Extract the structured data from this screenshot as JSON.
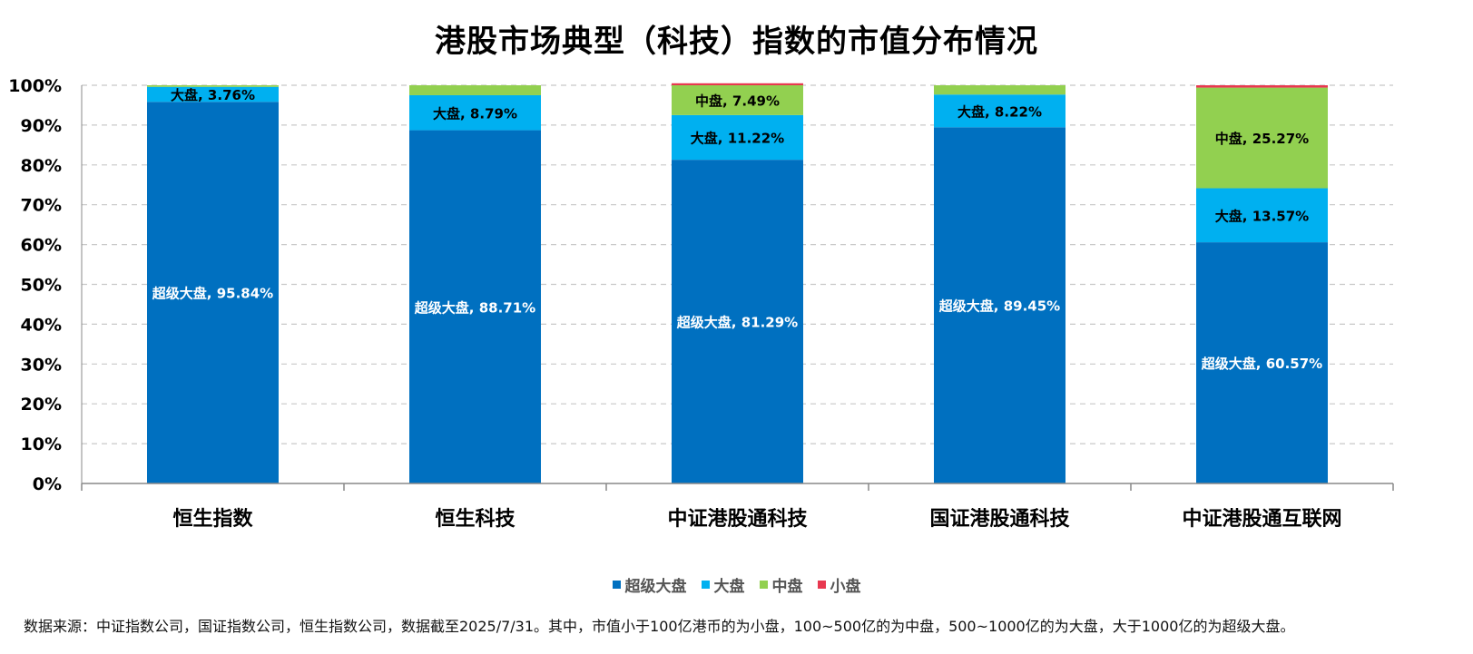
{
  "title": "港股市场典型（科技）指数的市值分布情况",
  "chart_data": {
    "type": "bar",
    "stacked": true,
    "categories": [
      "恒生指数",
      "恒生科技",
      "中证港股通科技",
      "国证港股通科技",
      "中证港股通互联网"
    ],
    "series": [
      {
        "name": "超级大盘",
        "color": "#0070C0",
        "values": [
          95.84,
          88.71,
          81.29,
          89.45,
          60.57
        ],
        "labels": [
          "超级大盘, 95.84%",
          "超级大盘, 88.71%",
          "超级大盘, 81.29%",
          "超级大盘, 89.45%",
          "超级大盘, 60.57%"
        ]
      },
      {
        "name": "大盘",
        "color": "#00B0F0",
        "values": [
          3.76,
          8.79,
          11.22,
          8.22,
          13.57
        ],
        "labels": [
          "大盘, 3.76%",
          "大盘, 8.79%",
          "大盘, 11.22%",
          "大盘, 8.22%",
          "大盘, 13.57%"
        ]
      },
      {
        "name": "中盘",
        "color": "#92D050",
        "values": [
          0.4,
          2.5,
          7.49,
          2.33,
          25.27
        ],
        "labels": [
          "",
          "",
          "中盘, 7.49%",
          "",
          "中盘, 25.27%"
        ]
      },
      {
        "name": "小盘",
        "color": "#E8384F",
        "values": [
          0,
          0,
          0.5,
          0,
          0.59
        ],
        "labels": [
          "",
          "",
          "",
          "",
          ""
        ]
      }
    ],
    "ylim": [
      0,
      100
    ],
    "yticks": [
      "0%",
      "10%",
      "20%",
      "30%",
      "40%",
      "50%",
      "60%",
      "70%",
      "80%",
      "90%",
      "100%"
    ],
    "grid": true,
    "legend_position": "bottom"
  },
  "footnote": "数据来源：中证指数公司，国证指数公司，恒生指数公司，数据截至2025/7/31。其中，市值小于100亿港币的为小盘，100~500亿的为中盘，500~1000亿的为大盘，大于1000亿的为超级大盘。"
}
